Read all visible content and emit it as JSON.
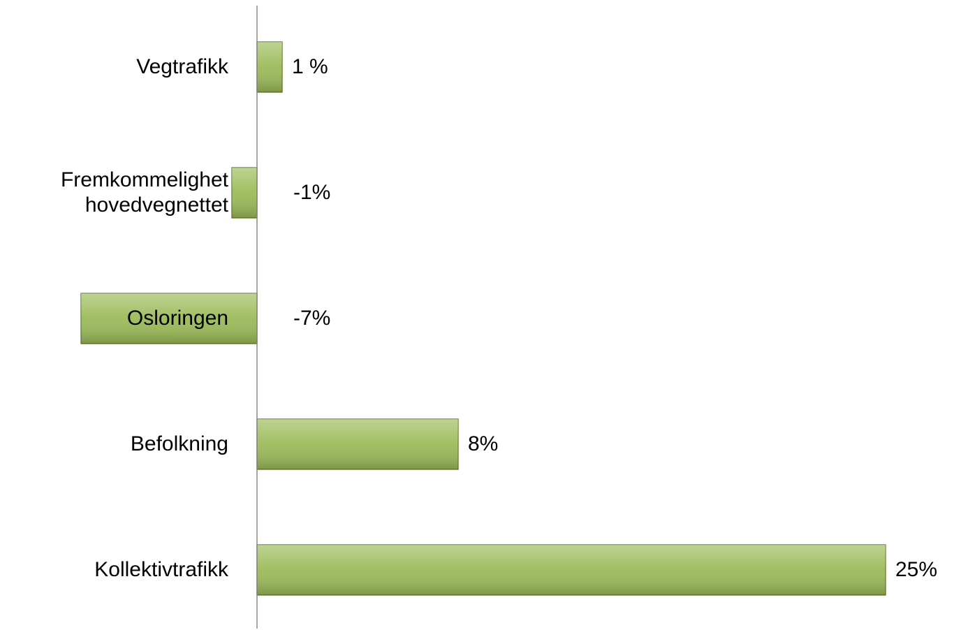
{
  "chart_data": {
    "type": "bar",
    "orientation": "horizontal",
    "categories": [
      "Vegtrafikk",
      "Fremkommelighet\nhovedvegnettet",
      "Osloringen",
      "Befolkning",
      "Kollektivtrafikk"
    ],
    "values": [
      1,
      -1,
      -7,
      8,
      25
    ],
    "value_labels": [
      "1 %",
      "-1%",
      "-7%",
      "8%",
      "25%"
    ],
    "color": "#9bbb59",
    "xlim": [
      -10,
      27
    ]
  }
}
